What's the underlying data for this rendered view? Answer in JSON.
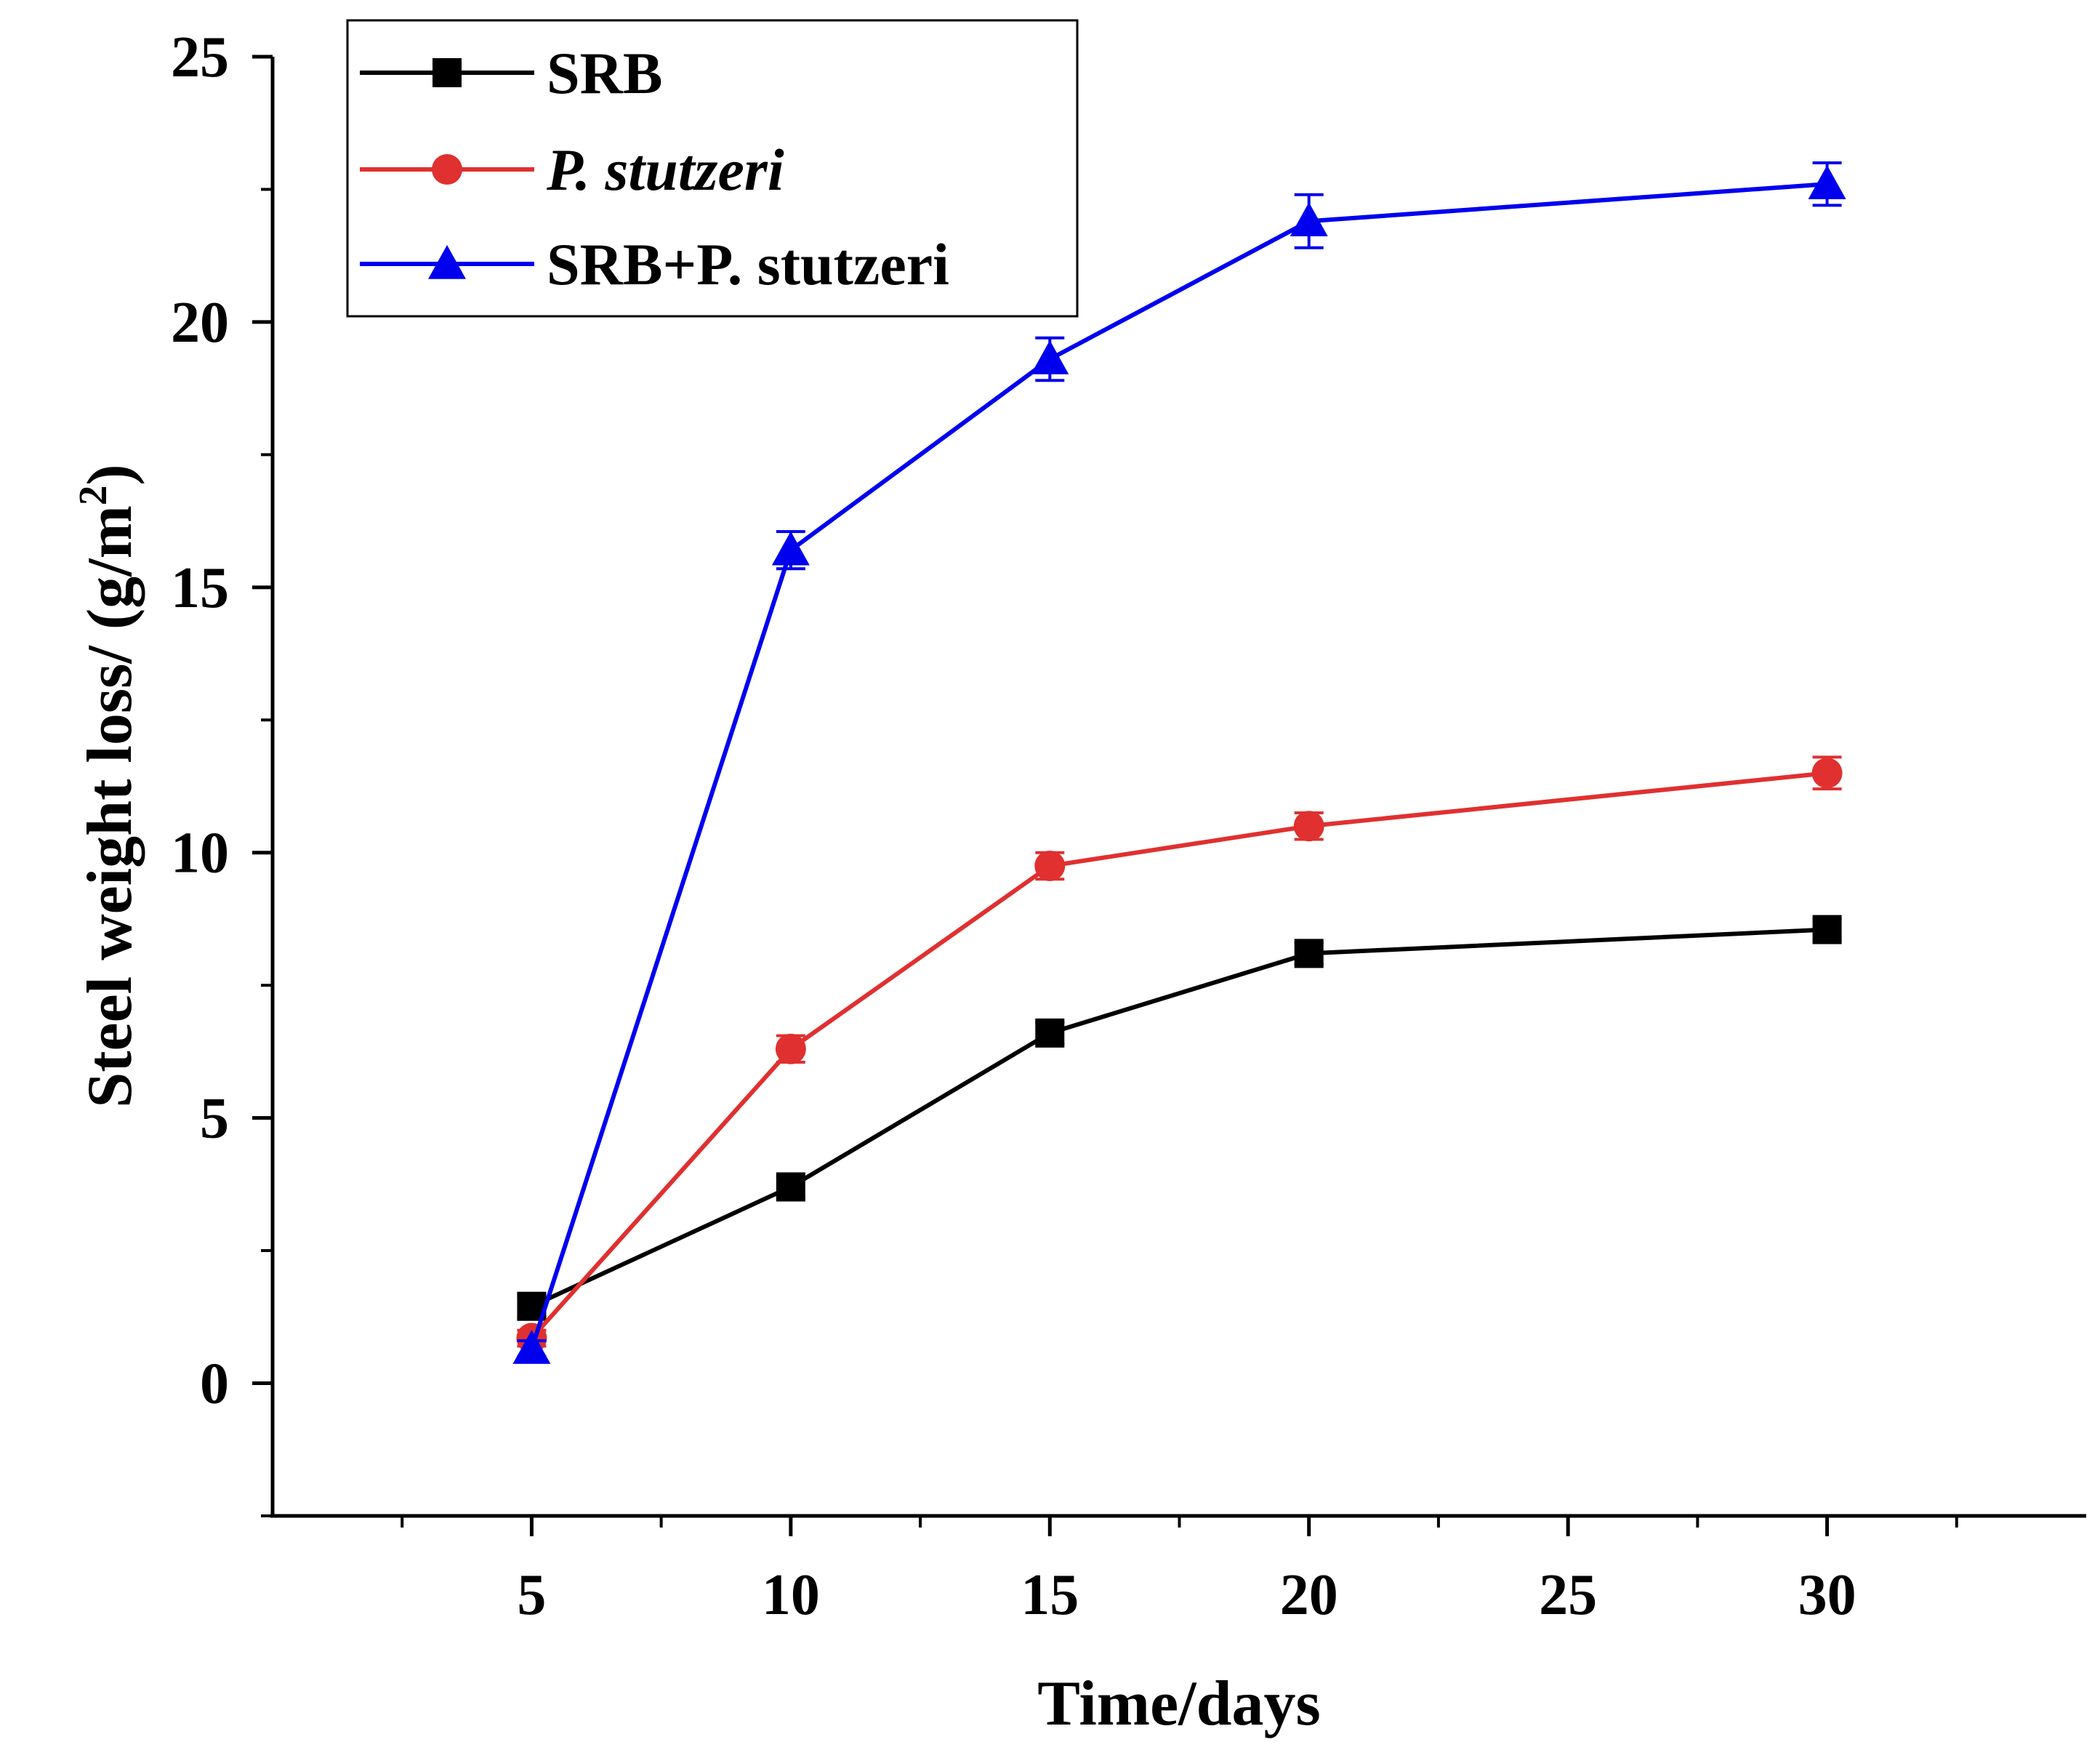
{
  "chart_data": {
    "type": "line",
    "title": "",
    "xlabel": "Time/days",
    "ylabel_main": "Steel weight loss/ (g/m",
    "ylabel_sup": "2",
    "ylabel_close": ")",
    "xlim": [
      0,
      35
    ],
    "ylim": [
      -2.5,
      25
    ],
    "xticks": [
      5,
      10,
      15,
      20,
      25,
      30
    ],
    "xtick_labels": [
      "5",
      "10",
      "15",
      "20",
      "25",
      "30"
    ],
    "xminor": [
      2.5,
      7.5,
      12.5,
      17.5,
      22.5,
      27.5,
      32.5
    ],
    "yticks": [
      0,
      5,
      10,
      15,
      20,
      25
    ],
    "ytick_labels": [
      "0",
      "5",
      "10",
      "15",
      "20",
      "25"
    ],
    "yminor": [
      -2.5,
      2.5,
      7.5,
      12.5,
      17.5,
      22.5
    ],
    "grid": false,
    "legend_position": "top-left",
    "x": [
      5,
      10,
      15,
      20,
      30
    ],
    "series": [
      {
        "name": "SRB",
        "italic": false,
        "color": "#000000",
        "marker": "square",
        "values": [
          1.45,
          3.7,
          6.6,
          8.1,
          8.55
        ],
        "errors": [
          0.2,
          0.2,
          0.2,
          0.2,
          0.2
        ]
      },
      {
        "name": "P. stutzeri",
        "italic": true,
        "color": "#e03030",
        "marker": "circle",
        "values": [
          0.85,
          6.3,
          9.75,
          10.5,
          11.5
        ],
        "errors": [
          0.15,
          0.25,
          0.25,
          0.25,
          0.3
        ]
      },
      {
        "name": "SRB+P. stutzeri",
        "italic": false,
        "color": "#0000ee",
        "marker": "triangle",
        "values": [
          0.65,
          15.7,
          19.3,
          21.9,
          22.6
        ],
        "errors": [
          0.15,
          0.35,
          0.4,
          0.5,
          0.4
        ]
      }
    ]
  }
}
